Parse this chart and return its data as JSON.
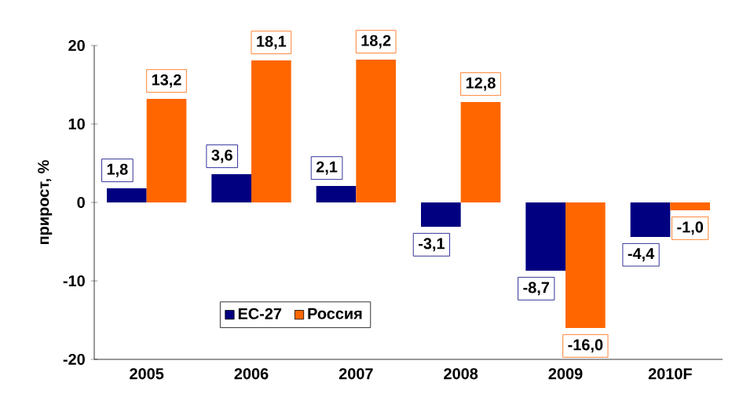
{
  "chart_data": {
    "type": "bar",
    "ylabel": "прирост, %",
    "categories": [
      "2005",
      "2006",
      "2007",
      "2008",
      "2009",
      "2010F"
    ],
    "series": [
      {
        "name": "ЕС-27",
        "color": "#000080",
        "values": [
          1.8,
          3.6,
          2.1,
          -3.1,
          -8.7,
          -4.4
        ],
        "value_labels": [
          "1,8",
          "3,6",
          "2,1",
          "-3,1",
          "-8,7",
          "-4,4"
        ]
      },
      {
        "name": "Россия",
        "color": "#ff6600",
        "values": [
          13.2,
          18.1,
          18.2,
          12.8,
          -16.0,
          -1.0
        ],
        "value_labels": [
          "13,2",
          "18,1",
          "18,2",
          "12,8",
          "-16,0",
          "-1,0"
        ]
      }
    ],
    "ylim": [
      -20,
      20
    ],
    "yticks": [
      -20,
      -10,
      0,
      10,
      20
    ],
    "legend": "bottom left"
  }
}
